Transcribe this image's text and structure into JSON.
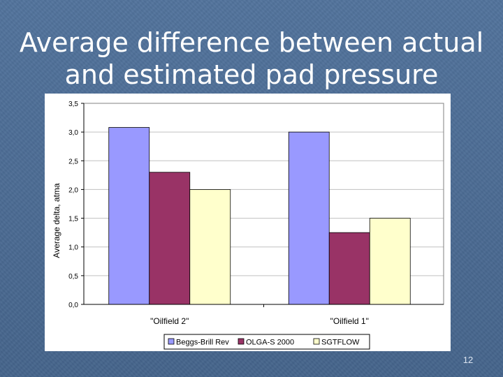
{
  "slide": {
    "title_line1": "Average difference between actual",
    "title_line2": "and estimated pad pressure",
    "page_number": "12"
  },
  "chart_data": {
    "type": "bar",
    "title": "",
    "xlabel": "",
    "ylabel": "Average delta, atma",
    "categories": [
      "\"Oilfield 2\"",
      "\"Oilfield 1\""
    ],
    "series": [
      {
        "name": "Beggs-Brill Rev",
        "color": "#9999ff",
        "values": [
          3.08,
          3.0
        ]
      },
      {
        "name": "OLGA-S 2000",
        "color": "#993366",
        "values": [
          2.3,
          1.25
        ]
      },
      {
        "name": "SGTFLOW",
        "color": "#ffffcc",
        "values": [
          2.0,
          1.5
        ]
      }
    ],
    "ylim": [
      0,
      3.5
    ],
    "yticks": [
      "0,0",
      "0,5",
      "1,0",
      "1,5",
      "2,0",
      "2,5",
      "3,0",
      "3,5"
    ],
    "grid": true,
    "gridColor": "#c0c0c0",
    "legend": "bottom"
  }
}
